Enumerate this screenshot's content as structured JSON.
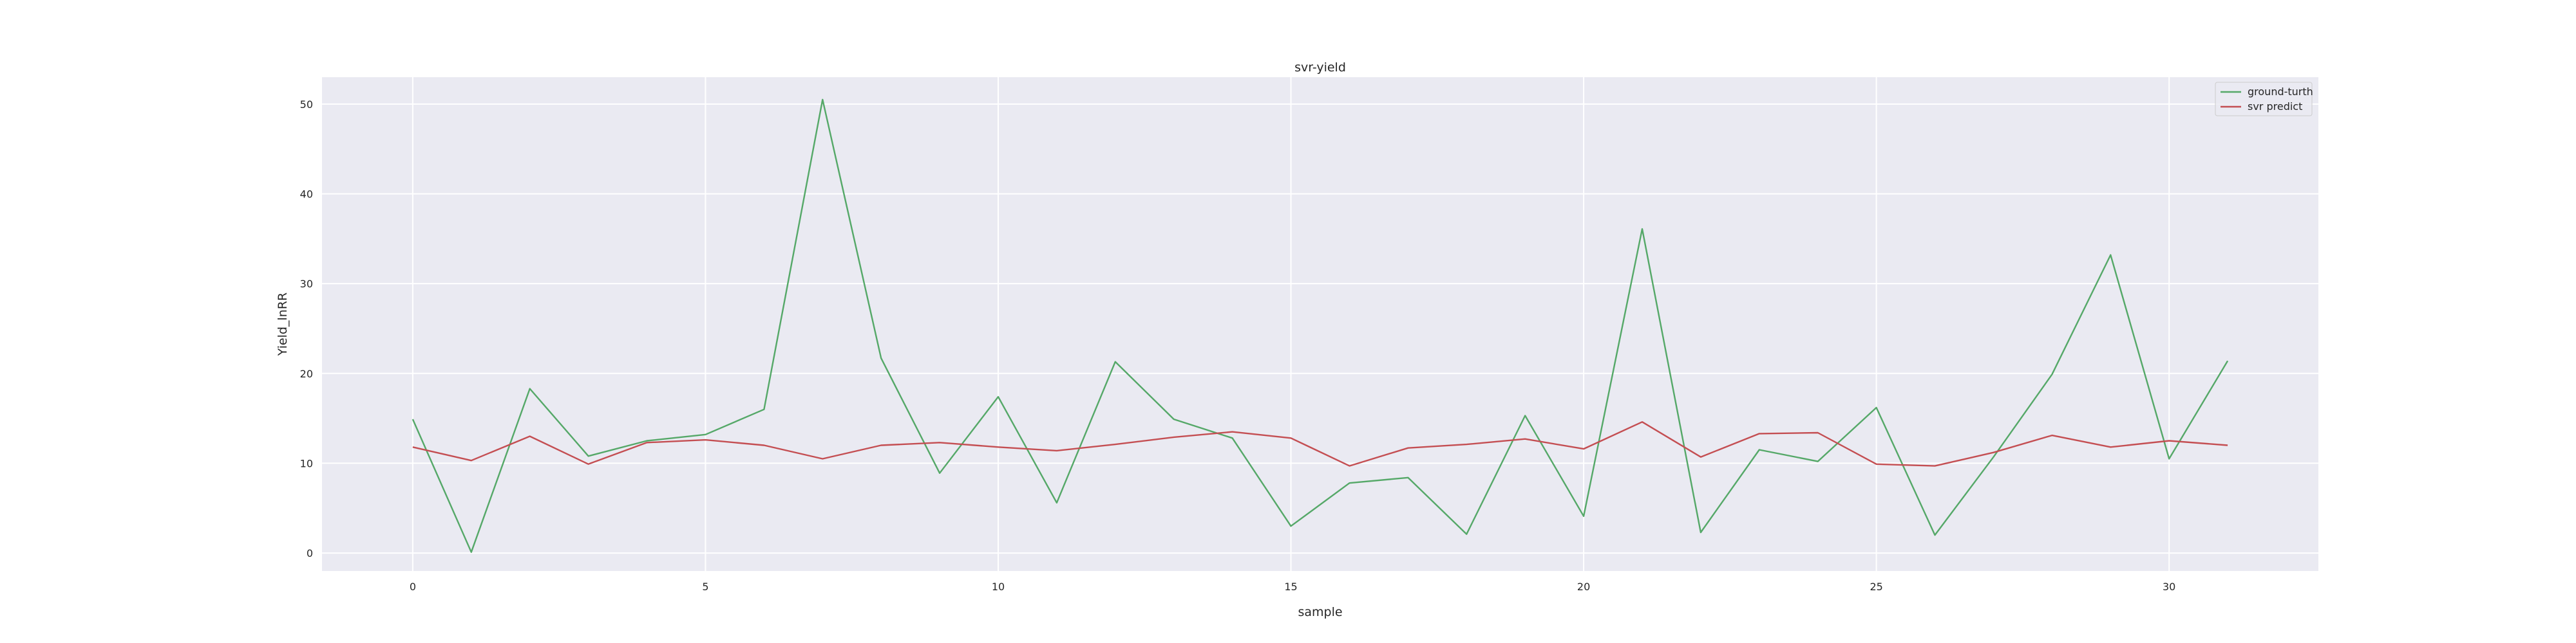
{
  "chart_data": {
    "type": "line",
    "title": "svr-yield",
    "xlabel": "sample",
    "ylabel": "Yield_lnRR",
    "xlim": [
      -1.55,
      32.55
    ],
    "ylim": [
      -2.0,
      53.0
    ],
    "xticks": [
      0,
      5,
      10,
      15,
      20,
      25,
      30
    ],
    "yticks": [
      0,
      10,
      20,
      30,
      40,
      50
    ],
    "grid": true,
    "legend_position": "top-right",
    "background": "#eaeaf2",
    "x": [
      0,
      1,
      2,
      3,
      4,
      5,
      6,
      7,
      8,
      9,
      10,
      11,
      12,
      13,
      14,
      15,
      16,
      17,
      18,
      19,
      20,
      21,
      22,
      23,
      24,
      25,
      26,
      27,
      28,
      29,
      30,
      31
    ],
    "series": [
      {
        "name": "ground-turth",
        "color": "#55a868",
        "values": [
          14.9,
          0.1,
          18.3,
          10.8,
          12.5,
          13.2,
          16.0,
          50.5,
          21.7,
          8.9,
          17.4,
          5.6,
          21.3,
          14.9,
          12.8,
          3.0,
          7.8,
          8.4,
          2.1,
          15.3,
          4.1,
          36.1,
          2.3,
          11.5,
          10.2,
          16.2,
          2.0,
          10.7,
          19.9,
          33.2,
          10.5,
          21.4
        ]
      },
      {
        "name": "svr predict",
        "color": "#c44e52",
        "values": [
          11.8,
          10.3,
          13.0,
          9.9,
          12.3,
          12.6,
          12.0,
          10.5,
          12.0,
          12.3,
          11.8,
          11.4,
          12.1,
          12.9,
          13.5,
          12.8,
          9.7,
          11.7,
          12.1,
          12.7,
          11.6,
          14.6,
          10.7,
          13.3,
          13.4,
          9.9,
          9.7,
          11.2,
          13.1,
          11.8,
          12.5,
          12.0
        ]
      }
    ]
  }
}
